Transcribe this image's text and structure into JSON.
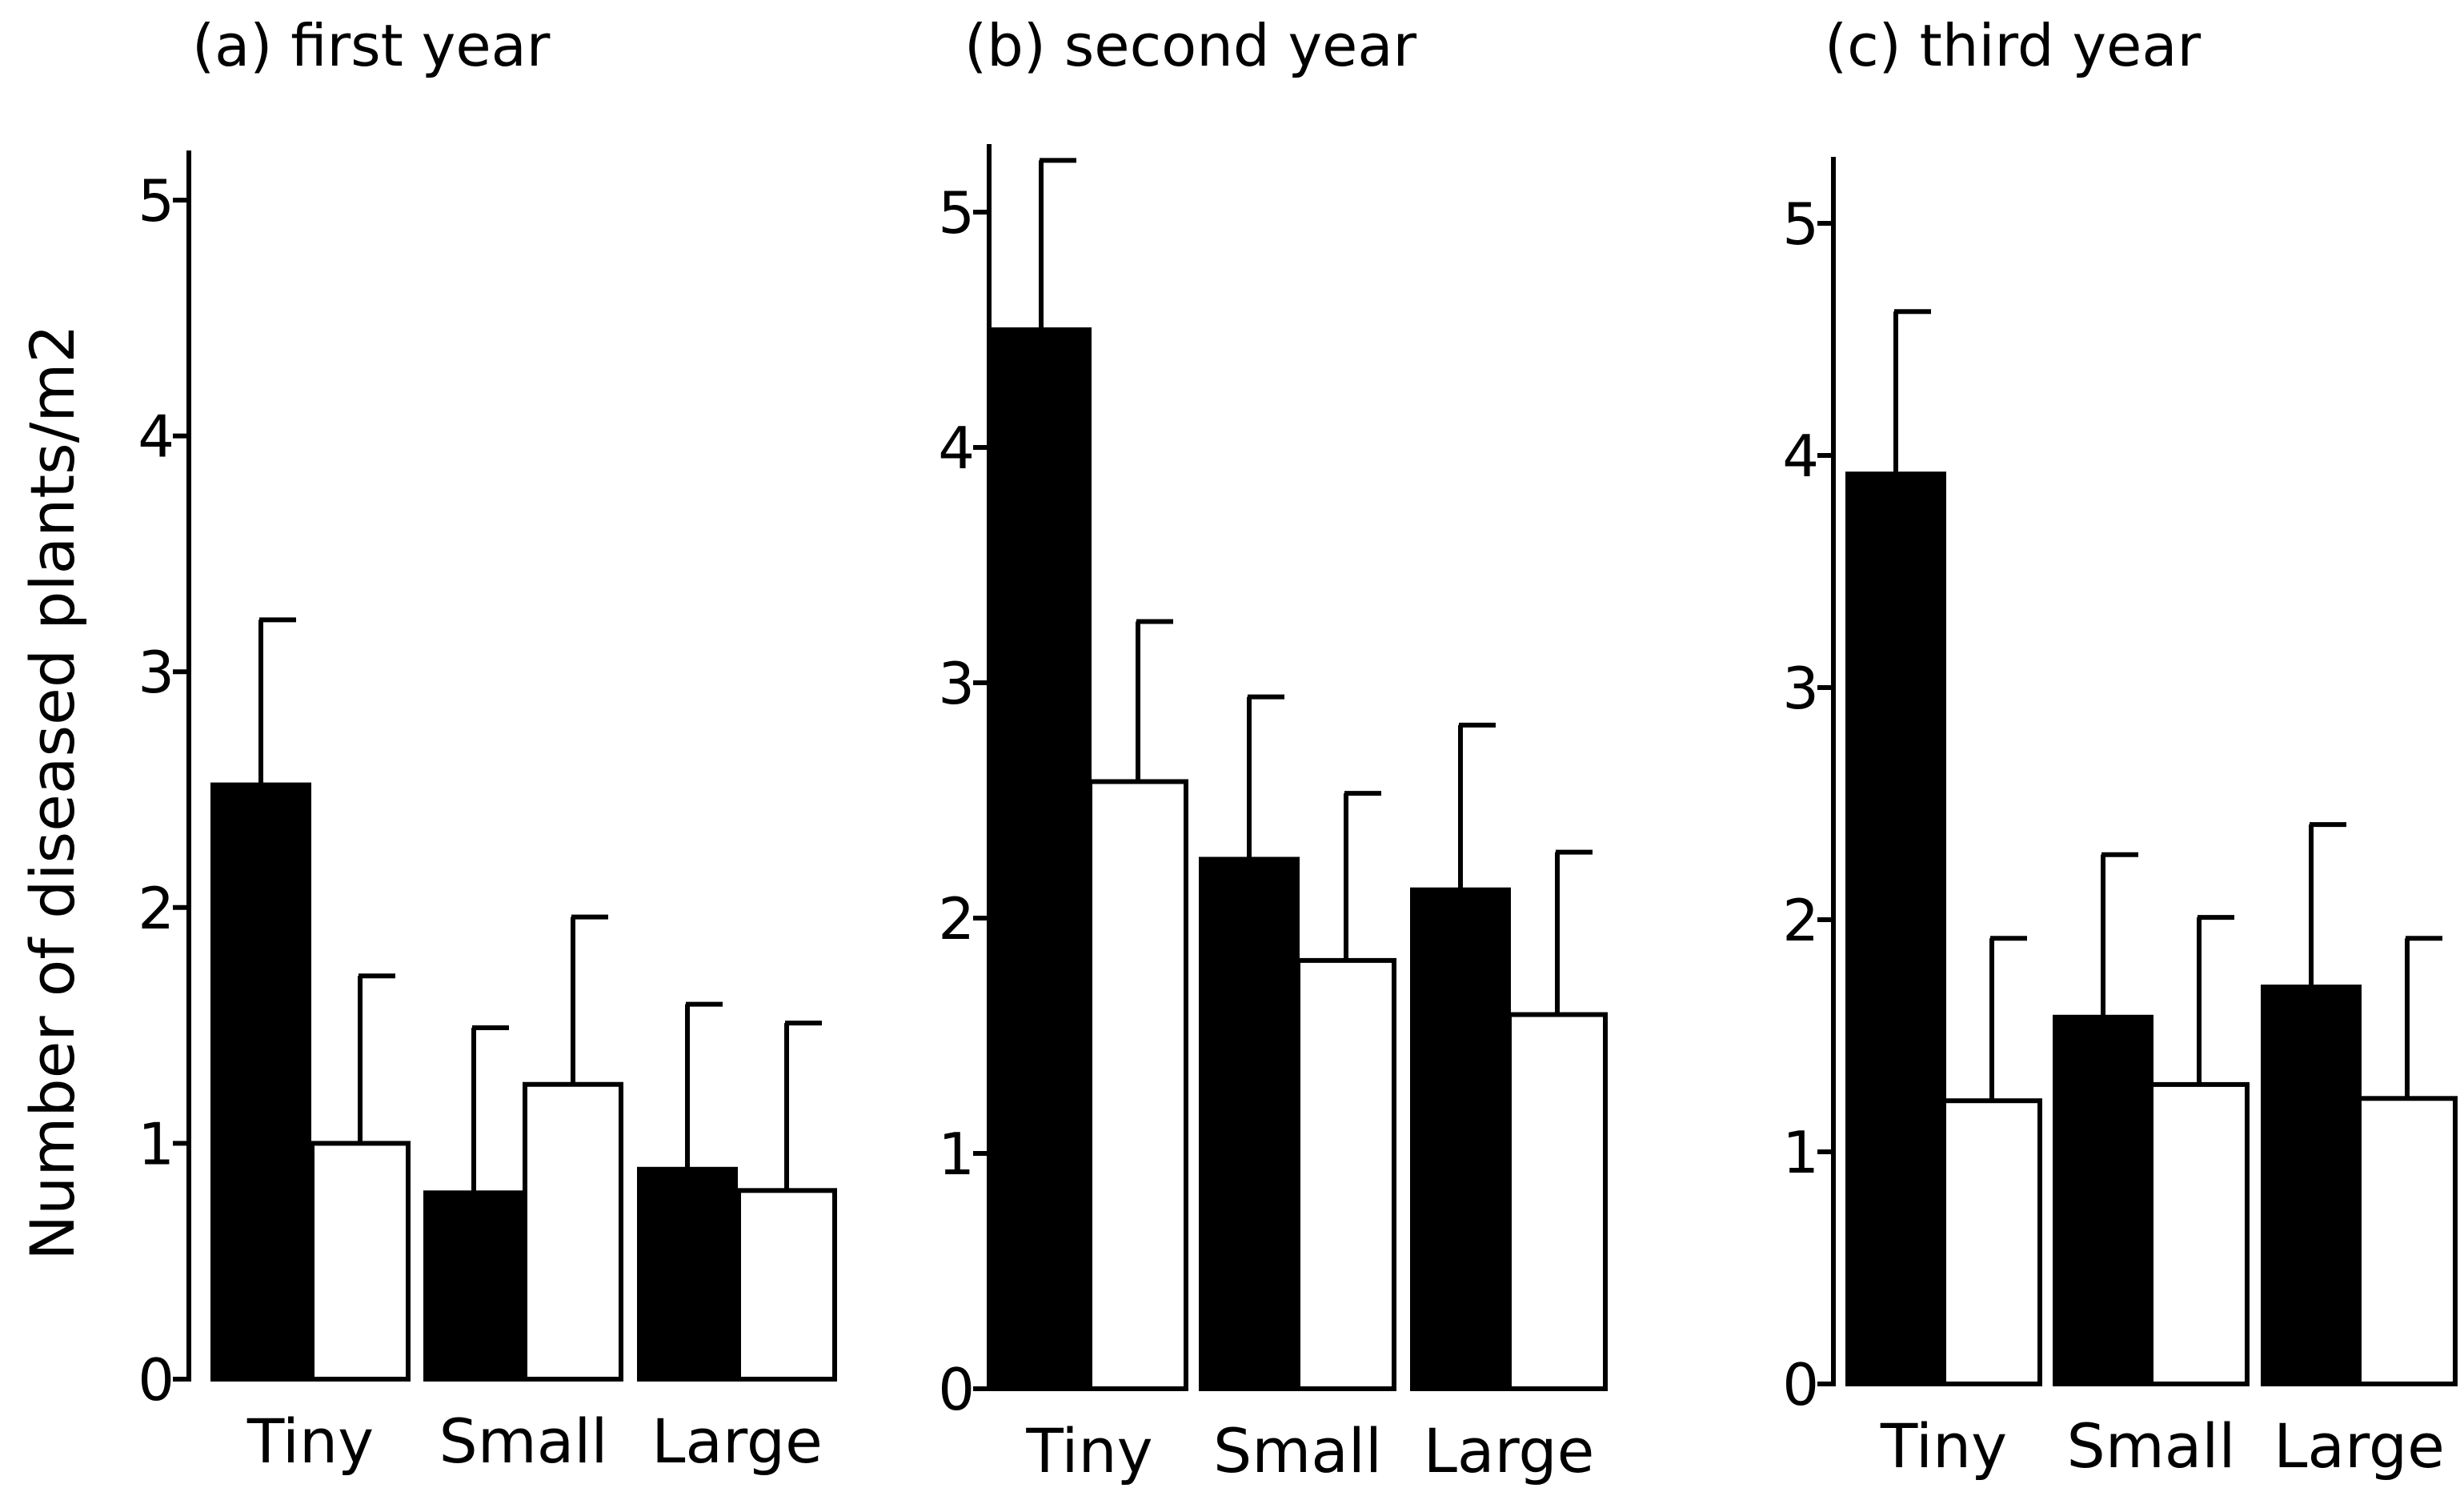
{
  "chart_data": {
    "y_axis": {
      "label": "Number of diseased plants/m2",
      "ylim": [
        0,
        5.2
      ],
      "ticks": [
        0,
        1,
        2,
        3,
        4,
        5
      ]
    },
    "colors": {
      "filled_series": "#000000",
      "open_series": "#ffffff",
      "stroke": "#000000"
    },
    "panels": [
      {
        "type": "bar",
        "title": "(a) first year",
        "categories": [
          "Tiny",
          "Small",
          "Large"
        ],
        "tick_labels": [
          "0",
          "1",
          "2",
          "3",
          "4",
          "5"
        ],
        "series": [
          {
            "name": "filled",
            "values": [
              2.52,
              0.79,
              0.89
            ],
            "error": [
              0.7,
              0.7,
              0.7
            ]
          },
          {
            "name": "open",
            "values": [
              1.0,
              1.25,
              0.8
            ],
            "error": [
              0.71,
              0.71,
              0.71
            ]
          }
        ]
      },
      {
        "type": "bar",
        "title": "(b) second year",
        "categories": [
          "Tiny",
          "Small",
          "Large"
        ],
        "tick_labels": [
          "0",
          "1",
          "2",
          "3",
          "4",
          "5"
        ],
        "series": [
          {
            "name": "filled",
            "values": [
              4.5,
              2.25,
              2.12
            ],
            "error": [
              0.72,
              0.69,
              0.7
            ]
          },
          {
            "name": "open",
            "values": [
              2.58,
              1.82,
              1.59
            ],
            "error": [
              0.68,
              0.71,
              0.69
            ]
          }
        ]
      },
      {
        "type": "bar",
        "title": "(c) third year",
        "categories": [
          "Tiny",
          "Small",
          "Large"
        ],
        "tick_labels": [
          "0",
          "1",
          "2",
          "3",
          "4",
          "5"
        ],
        "series": [
          {
            "name": "filled",
            "values": [
              3.92,
              1.58,
              1.71
            ],
            "error": [
              0.7,
              0.7,
              0.7
            ]
          },
          {
            "name": "open",
            "values": [
              1.22,
              1.29,
              1.23
            ],
            "error": [
              0.7,
              0.72,
              0.69
            ]
          }
        ]
      }
    ]
  }
}
